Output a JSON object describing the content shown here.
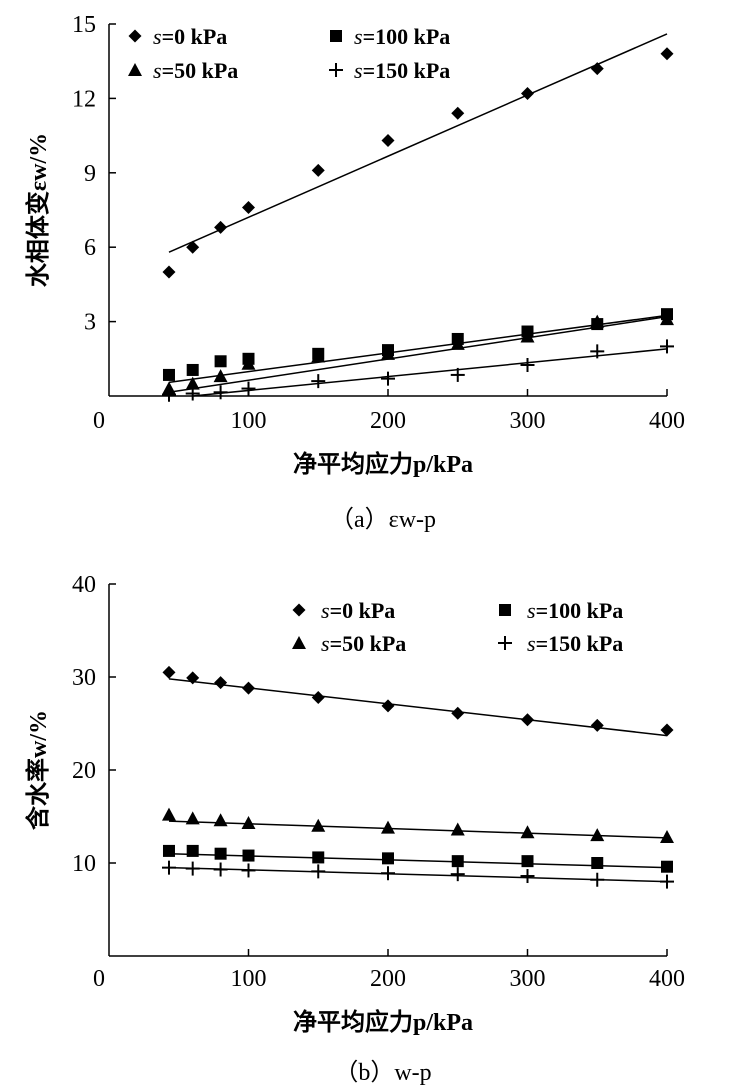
{
  "chart_data": [
    {
      "id": "a",
      "type": "scatter",
      "caption": "（a）εw-p",
      "xlabel": "净平均应力p/kPa",
      "ylabel": "水相体变εw/%",
      "xlim": [
        0,
        400
      ],
      "ylim": [
        0,
        15
      ],
      "xticks": [
        0,
        100,
        200,
        300,
        400
      ],
      "yticks": [
        3,
        6,
        9,
        12,
        15
      ],
      "legend_position": "top-left",
      "x": [
        43,
        60,
        80,
        100,
        150,
        200,
        250,
        300,
        350,
        400
      ],
      "series": [
        {
          "name": "s=0 kPa",
          "marker": "diamond",
          "values": [
            5.0,
            6.0,
            6.8,
            7.6,
            9.1,
            10.3,
            11.4,
            12.2,
            13.2,
            13.8
          ],
          "fit": [
            [
              43,
              5.8
            ],
            [
              400,
              14.6
            ]
          ]
        },
        {
          "name": "s=100 kPa",
          "marker": "square",
          "values": [
            0.85,
            1.05,
            1.4,
            1.5,
            1.7,
            1.85,
            2.3,
            2.6,
            2.9,
            3.3
          ],
          "fit": [
            [
              43,
              0.55
            ],
            [
              400,
              3.25
            ]
          ]
        },
        {
          "name": "s=50 kPa",
          "marker": "triangle",
          "values": [
            0.3,
            0.5,
            0.8,
            1.3,
            1.6,
            1.7,
            2.1,
            2.4,
            3.0,
            3.1
          ],
          "fit": [
            [
              43,
              0.15
            ],
            [
              400,
              3.2
            ]
          ]
        },
        {
          "name": "s=150 kPa",
          "marker": "plus",
          "values": [
            0.05,
            0.1,
            0.15,
            0.3,
            0.6,
            0.7,
            0.85,
            1.25,
            1.8,
            2.0
          ],
          "fit": [
            [
              60,
              0.0
            ],
            [
              400,
              1.9
            ]
          ]
        }
      ]
    },
    {
      "id": "b",
      "type": "scatter",
      "caption": "（b）w-p",
      "xlabel": "净平均应力p/kPa",
      "ylabel": "含水率w/%",
      "xlim": [
        0,
        400
      ],
      "ylim": [
        0,
        40
      ],
      "xticks": [
        0,
        100,
        200,
        300,
        400
      ],
      "yticks": [
        10,
        20,
        30,
        40
      ],
      "legend_position": "top-right",
      "x": [
        43,
        60,
        80,
        100,
        150,
        200,
        250,
        300,
        350,
        400
      ],
      "series": [
        {
          "name": "s=0 kPa",
          "marker": "diamond",
          "values": [
            30.5,
            29.9,
            29.4,
            28.8,
            27.8,
            26.9,
            26.1,
            25.4,
            24.8,
            24.3
          ],
          "fit": [
            [
              43,
              29.8
            ],
            [
              400,
              23.7
            ]
          ]
        },
        {
          "name": "s=100 kPa",
          "marker": "square",
          "values": [
            11.3,
            11.3,
            11.0,
            10.8,
            10.6,
            10.5,
            10.2,
            10.2,
            10.0,
            9.6
          ],
          "fit": [
            [
              43,
              11.0
            ],
            [
              400,
              9.5
            ]
          ]
        },
        {
          "name": "s=50 kPa",
          "marker": "triangle",
          "values": [
            15.2,
            14.8,
            14.6,
            14.3,
            14.0,
            13.8,
            13.6,
            13.3,
            13.0,
            12.8
          ],
          "fit": [
            [
              43,
              14.5
            ],
            [
              400,
              12.7
            ]
          ]
        },
        {
          "name": "s=150 kPa",
          "marker": "plus",
          "values": [
            9.5,
            9.4,
            9.3,
            9.2,
            9.1,
            8.9,
            8.8,
            8.6,
            8.2,
            8.0
          ],
          "fit": [
            [
              43,
              9.5
            ],
            [
              400,
              8.0
            ]
          ]
        }
      ]
    }
  ]
}
